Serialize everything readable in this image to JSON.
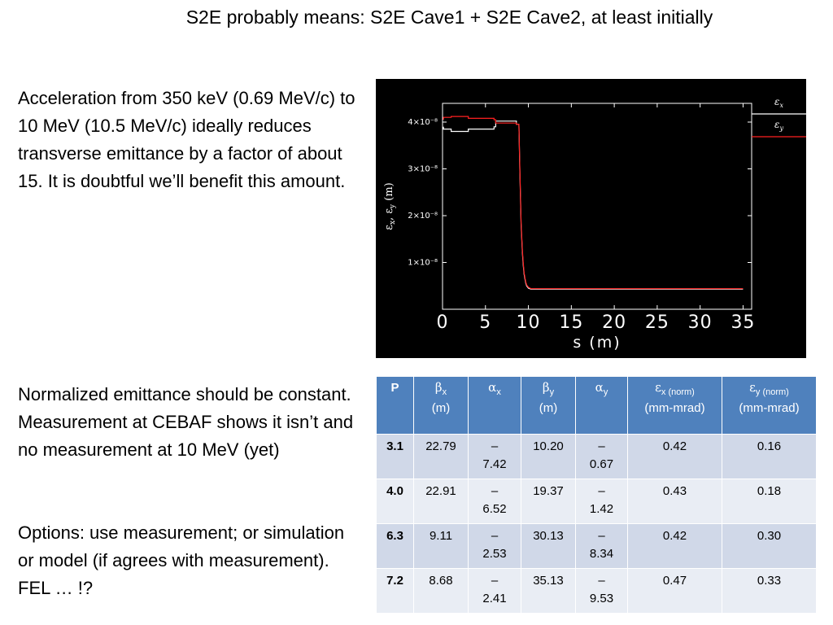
{
  "slide": {
    "title": "S2E probably means:  S2E Cave1 + S2E Cave2, at least initially",
    "paragraph1": "Acceleration from 350 keV (0.69 MeV/c) to 10 MeV (10.5 MeV/c) ideally reduces transverse emittance by a factor of about 15.   It is doubtful we’ll benefit this amount.",
    "paragraph2": "Normalized emittance should be constant.  Measurement at CEBAF shows it isn’t and no measurement at 10 MeV (yet)",
    "paragraph3": "Options: use measurement; or simulation or model (if agrees with measurement).  FEL … !?"
  },
  "chart_data": {
    "type": "line",
    "xlabel": "s (m)",
    "ylabel_parts": [
      "ε",
      "x",
      ", ε",
      "y",
      " (m)"
    ],
    "xlim": [
      0,
      36
    ],
    "ylim": [
      0,
      4.4e-08
    ],
    "xticks": [
      0,
      5,
      10,
      15,
      20,
      25,
      30,
      35
    ],
    "xtick_labels": [
      "0",
      "5",
      "10",
      "15",
      "20",
      "25",
      "30",
      "35"
    ],
    "yticks": [
      1e-08,
      2e-08,
      3e-08,
      4e-08
    ],
    "ytick_labels": [
      "1×10⁻⁸",
      "2×10⁻⁸",
      "3×10⁻⁸",
      "4×10⁻⁸"
    ],
    "legend_position": "outside-top-right",
    "series": [
      {
        "name": "εx",
        "color": "#ffffff",
        "x": [
          0.1,
          0.1,
          1.0,
          1.0,
          3.0,
          3.0,
          6.0,
          6.0,
          6.2,
          6.2,
          8.6,
          8.6,
          8.9,
          9.0,
          9.15,
          9.3,
          9.4,
          9.5,
          9.6,
          9.7,
          9.8,
          10.0,
          10.3,
          35.0
        ],
        "y": [
          3.9e-08,
          3.85e-08,
          3.85e-08,
          3.8e-08,
          3.8e-08,
          3.85e-08,
          3.85e-08,
          3.9e-08,
          3.9e-08,
          4.02e-08,
          4.02e-08,
          3.95e-08,
          3.95e-08,
          3e-08,
          1.8e-08,
          1.2e-08,
          9.5e-09,
          7.5e-09,
          6.5e-09,
          5.5e-09,
          5e-09,
          4.5e-09,
          4.3e-09,
          4.3e-09
        ]
      },
      {
        "name": "εy",
        "color": "#ff2020",
        "x": [
          0.1,
          0.1,
          1.0,
          1.0,
          3.0,
          3.0,
          6.0,
          6.0,
          6.2,
          6.2,
          8.6,
          8.6,
          8.9,
          9.0,
          9.15,
          9.3,
          9.4,
          9.5,
          9.6,
          9.7,
          9.8,
          10.0,
          10.3,
          35.0
        ],
        "y": [
          4.05e-08,
          4.1e-08,
          4.1e-08,
          4.12e-08,
          4.12e-08,
          4.08e-08,
          4.08e-08,
          4.05e-08,
          4.05e-08,
          3.98e-08,
          3.98e-08,
          3.95e-08,
          3.95e-08,
          3.05e-08,
          1.85e-08,
          1.25e-08,
          1e-08,
          7.8e-09,
          6.8e-09,
          5.8e-09,
          5.2e-09,
          4.7e-09,
          4.4e-09,
          4.4e-09
        ]
      }
    ]
  },
  "table": {
    "headers": [
      {
        "sym": "P",
        "sub": "",
        "unit": ""
      },
      {
        "sym": "β",
        "sub": "x",
        "unit": "(m)"
      },
      {
        "sym": "α",
        "sub": "x",
        "unit": ""
      },
      {
        "sym": "β",
        "sub": "y",
        "unit": "(m)"
      },
      {
        "sym": "α",
        "sub": "y",
        "unit": ""
      },
      {
        "sym": "ε",
        "sub": "x (norm)",
        "unit": "(mm-mrad)"
      },
      {
        "sym": "ε",
        "sub": "y  (norm)",
        "unit": "(mm-mrad)"
      }
    ],
    "rows": [
      {
        "p": "3.1",
        "bx": "22.79",
        "ax_sign": "–",
        "ax": "7.42",
        "by": "10.20",
        "ay_sign": "–",
        "ay": "0.67",
        "ex": "0.42",
        "ey": "0.16"
      },
      {
        "p": "4.0",
        "bx": "22.91",
        "ax_sign": "–",
        "ax": "6.52",
        "by": "19.37",
        "ay_sign": "–",
        "ay": "1.42",
        "ex": "0.43",
        "ey": "0.18"
      },
      {
        "p": "6.3",
        "bx": "9.11",
        "ax_sign": "–",
        "ax": "2.53",
        "by": "30.13",
        "ay_sign": "–",
        "ay": "8.34",
        "ex": "0.42",
        "ey": "0.30"
      },
      {
        "p": "7.2",
        "bx": "8.68",
        "ax_sign": "–",
        "ax": "2.41",
        "by": "35.13",
        "ay_sign": "–",
        "ay": "9.53",
        "ex": "0.47",
        "ey": "0.33"
      }
    ]
  }
}
